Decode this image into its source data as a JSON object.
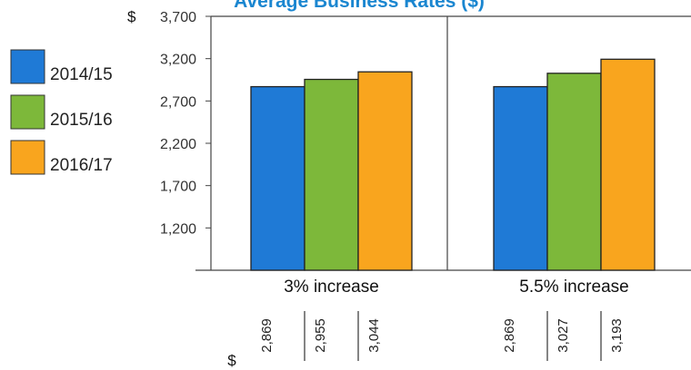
{
  "chart_data": {
    "type": "bar",
    "title": "Average Business Rates ($)",
    "y_unit_label": "$",
    "table_unit_label": "$",
    "categories": [
      "3% increase",
      "5.5% increase"
    ],
    "series": [
      {
        "name": "2014/15",
        "color": "#1f7ad6",
        "values": [
          2869,
          2869
        ]
      },
      {
        "name": "2015/16",
        "color": "#7db83a",
        "values": [
          2955,
          3027
        ]
      },
      {
        "name": "2016/17",
        "color": "#f9a51e",
        "values": [
          3044,
          3193
        ]
      }
    ],
    "value_labels": [
      [
        "2,869",
        "2,955",
        "3,044"
      ],
      [
        "2,869",
        "3,027",
        "3,193"
      ]
    ],
    "yticks": [
      3700,
      3200,
      2700,
      2200,
      1700,
      1200
    ],
    "ytick_labels": [
      "3,700",
      "3,200",
      "2,700",
      "2,200",
      "1,700",
      "1,200"
    ],
    "ylim": [
      700,
      3700
    ],
    "grid": false,
    "legend_position": "left"
  }
}
